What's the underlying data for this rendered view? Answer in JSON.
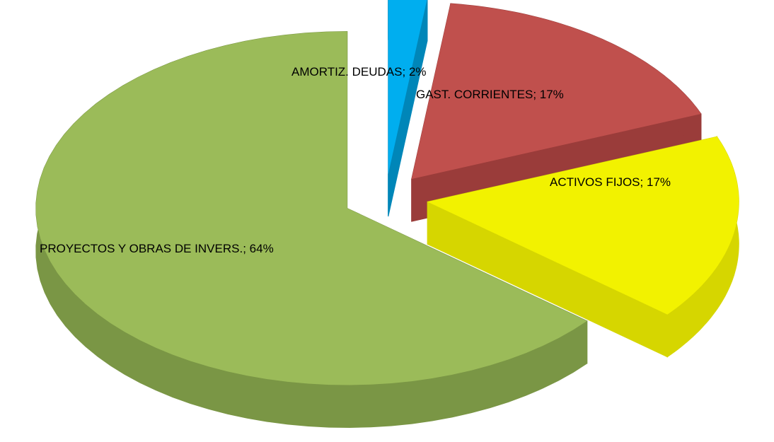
{
  "chart_data": {
    "type": "pie",
    "categories": [
      "AMORTIZ. DEUDAS",
      "GAST. CORRIENTES",
      "ACTIVOS FIJOS",
      "PROYECTOS Y OBRAS DE INVERS."
    ],
    "values": [
      2,
      17,
      17,
      64
    ],
    "value_labels": [
      "2%",
      "17%",
      "17%",
      "64%"
    ],
    "label_separator": "; ",
    "colors": [
      "#00aeef",
      "#c0504d",
      "#f2f200",
      "#9bbb59"
    ],
    "side_colors": [
      "#0086b8",
      "#9a3c3a",
      "#d6d600",
      "#7a9645"
    ],
    "exploded": true,
    "three_d": true
  }
}
